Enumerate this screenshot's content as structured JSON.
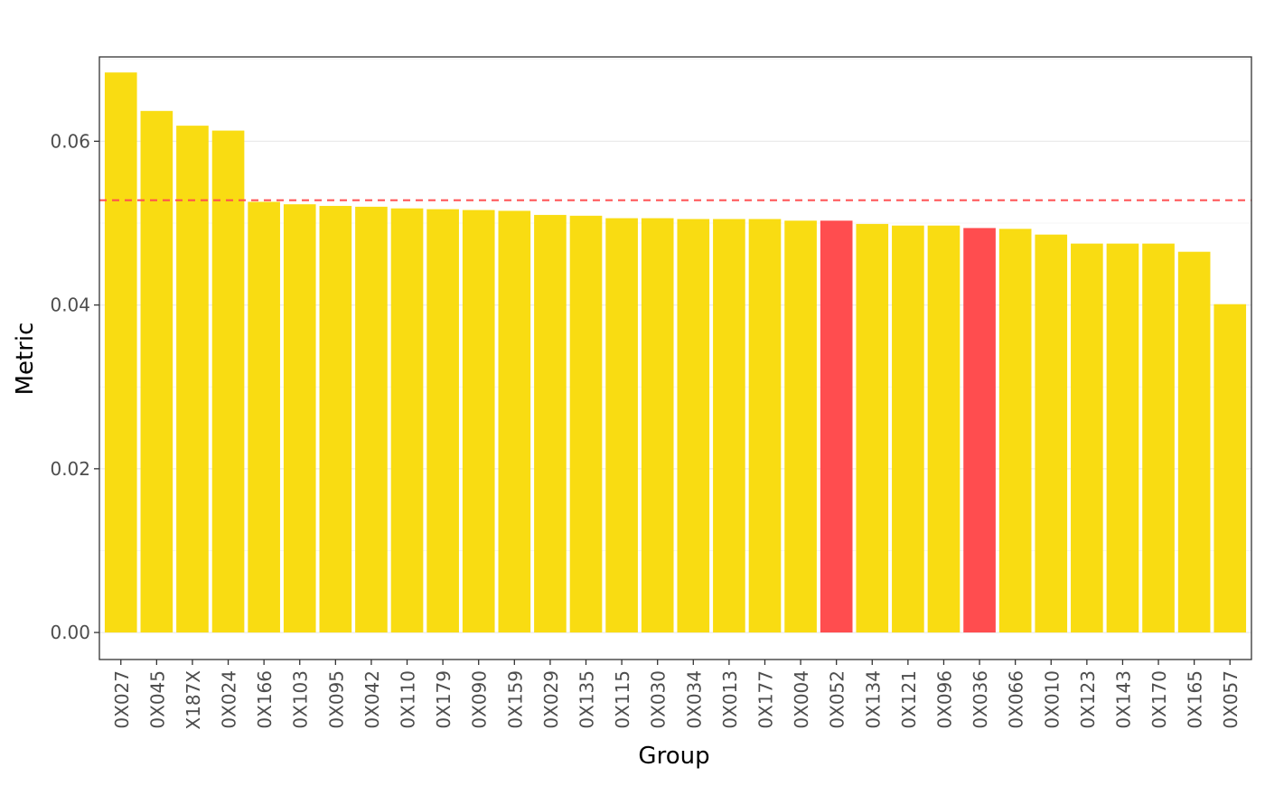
{
  "chart_data": {
    "type": "bar",
    "xlabel": "Group",
    "ylabel": "Metric",
    "ylim": [
      -0.0033,
      0.0703
    ],
    "y_ticks": [
      0.0,
      0.02,
      0.04,
      0.06
    ],
    "y_tick_labels": [
      "0.00",
      "0.02",
      "0.04",
      "0.06"
    ],
    "grid": true,
    "categories": [
      "0X027",
      "0X045",
      "X187X",
      "0X024",
      "0X166",
      "0X103",
      "0X095",
      "0X042",
      "0X110",
      "0X179",
      "0X090",
      "0X159",
      "0X029",
      "0X135",
      "0X115",
      "0X030",
      "0X034",
      "0X013",
      "0X177",
      "0X004",
      "0X052",
      "0X134",
      "0X121",
      "0X096",
      "0X036",
      "0X066",
      "0X010",
      "0X123",
      "0X143",
      "0X170",
      "0X165",
      "0X057"
    ],
    "values": [
      0.0684,
      0.0637,
      0.0619,
      0.0613,
      0.0526,
      0.0523,
      0.0521,
      0.052,
      0.0518,
      0.0517,
      0.0516,
      0.0515,
      0.051,
      0.0509,
      0.0506,
      0.0506,
      0.0505,
      0.0505,
      0.0505,
      0.0503,
      0.0503,
      0.0499,
      0.0497,
      0.0497,
      0.0494,
      0.0493,
      0.0486,
      0.0475,
      0.0475,
      0.0475,
      0.0465,
      0.0401
    ],
    "highlighted": [
      "0X052",
      "0X036"
    ],
    "reference_line": 0.0528,
    "colors": {
      "bar": "#F9DC12",
      "highlight": "#FF4D4F",
      "reference": "#FF4D4F"
    }
  }
}
